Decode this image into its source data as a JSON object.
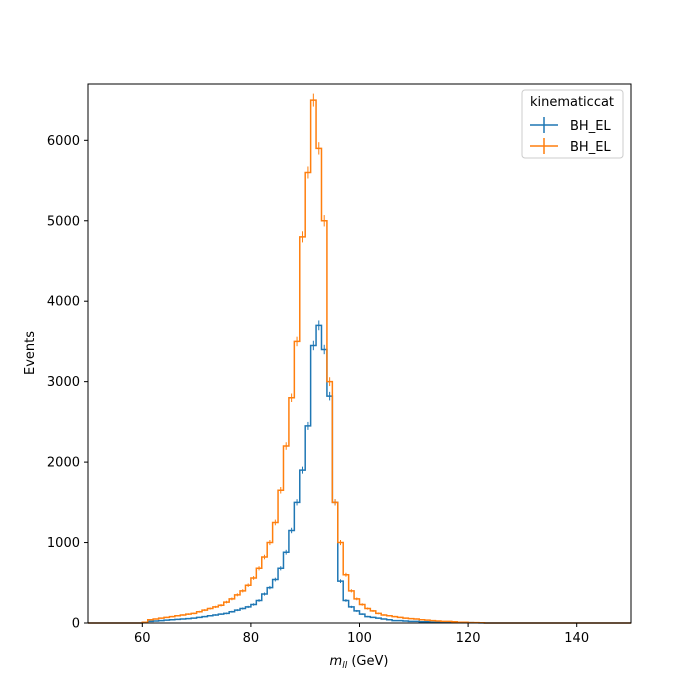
{
  "chart_data": {
    "type": "histogram",
    "xlabel": "m_{ll} (GeV)",
    "xlabel_math": "m",
    "xlabel_sub": "ll",
    "xlabel_unit": " (GeV)",
    "ylabel": "Events",
    "xlim": [
      50,
      150
    ],
    "ylim": [
      0,
      6700
    ],
    "xticks": [
      60,
      80,
      100,
      120,
      140
    ],
    "yticks": [
      0,
      1000,
      2000,
      3000,
      4000,
      5000,
      6000
    ],
    "grid": false,
    "legend": {
      "title": "kinematiccat",
      "placement": "top-right"
    },
    "bin_edges": [
      50,
      150
    ],
    "bin_width": 1,
    "error_bars": true,
    "series": [
      {
        "name": "BH_EL",
        "color": "#1f77b4",
        "x": [
          60,
          61,
          62,
          63,
          64,
          65,
          66,
          67,
          68,
          69,
          70,
          71,
          72,
          73,
          74,
          75,
          76,
          77,
          78,
          79,
          80,
          81,
          82,
          83,
          84,
          85,
          86,
          87,
          88,
          89,
          90,
          91,
          92,
          93,
          94,
          95,
          96,
          97,
          98,
          99,
          100,
          101,
          102,
          103,
          104,
          105,
          106,
          107,
          108,
          109,
          110,
          111,
          112,
          113,
          114,
          115,
          116,
          117,
          118,
          119,
          120,
          121,
          122
        ],
        "values": [
          5,
          20,
          25,
          30,
          35,
          40,
          45,
          50,
          55,
          60,
          70,
          80,
          90,
          100,
          110,
          120,
          140,
          160,
          180,
          200,
          230,
          280,
          360,
          440,
          540,
          680,
          880,
          1150,
          1500,
          1900,
          2450,
          3450,
          3700,
          3400,
          2820,
          1500,
          520,
          280,
          200,
          150,
          110,
          80,
          70,
          60,
          50,
          40,
          30,
          30,
          25,
          20,
          20,
          15,
          15,
          10,
          10,
          10,
          5,
          5,
          5,
          5,
          5,
          3,
          2
        ]
      },
      {
        "name": "BH_EL",
        "color": "#ff7f0e",
        "x": [
          60,
          61,
          62,
          63,
          64,
          65,
          66,
          67,
          68,
          69,
          70,
          71,
          72,
          73,
          74,
          75,
          76,
          77,
          78,
          79,
          80,
          81,
          82,
          83,
          84,
          85,
          86,
          87,
          88,
          89,
          90,
          91,
          92,
          93,
          94,
          95,
          96,
          97,
          98,
          99,
          100,
          101,
          102,
          103,
          104,
          105,
          106,
          107,
          108,
          109,
          110,
          111,
          112,
          113,
          114,
          115,
          116,
          117,
          118,
          119,
          120,
          121,
          122
        ],
        "values": [
          10,
          40,
          50,
          60,
          70,
          80,
          90,
          100,
          110,
          120,
          140,
          160,
          180,
          200,
          220,
          260,
          300,
          350,
          400,
          470,
          560,
          680,
          820,
          1000,
          1250,
          1650,
          2200,
          2800,
          3500,
          4800,
          5600,
          6500,
          5900,
          5000,
          3000,
          1500,
          1000,
          600,
          400,
          300,
          230,
          180,
          150,
          120,
          100,
          90,
          80,
          70,
          60,
          55,
          50,
          40,
          35,
          30,
          25,
          20,
          20,
          15,
          10,
          10,
          5,
          5,
          3
        ]
      }
    ]
  }
}
